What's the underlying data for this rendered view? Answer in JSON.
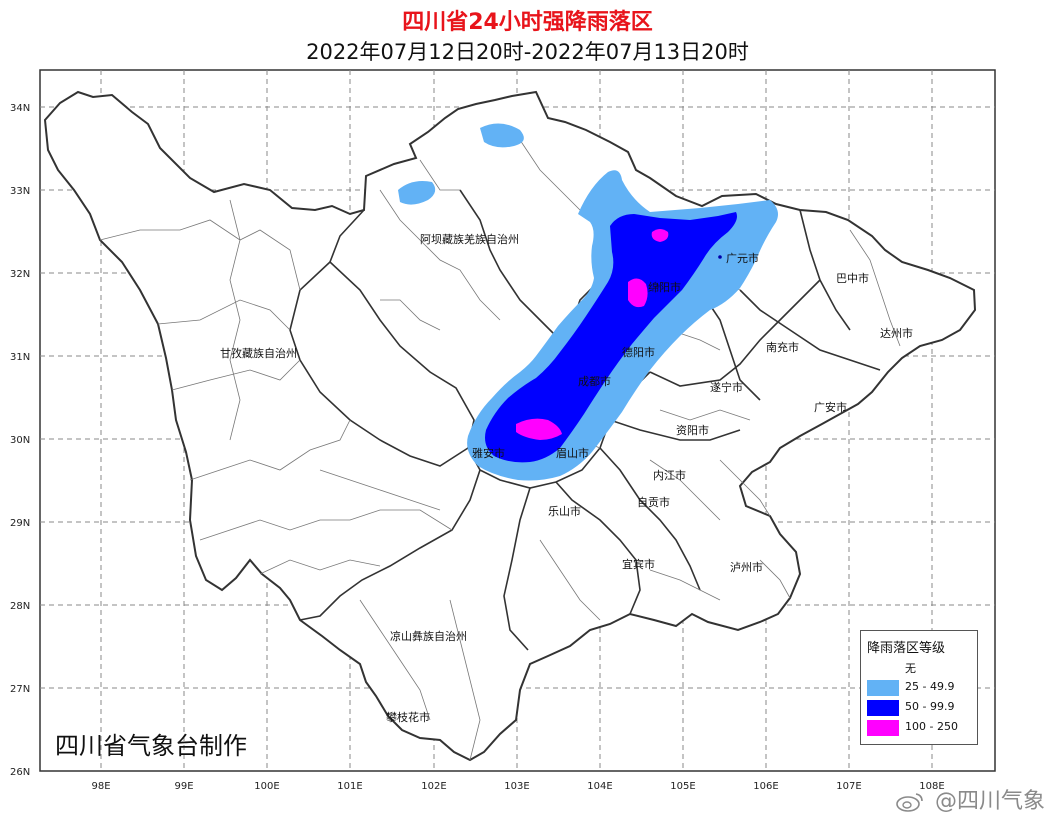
{
  "map": {
    "title": "四川省24小时强降雨落区",
    "subtitle": "2022年07月12日20时-2022年07月13日20时",
    "maker": "四川省气象台制作",
    "lat_labels": [
      "34N",
      "33N",
      "32N",
      "31N",
      "30N",
      "29N",
      "28N",
      "27N",
      "26N"
    ],
    "lon_labels": [
      "98E",
      "99E",
      "100E",
      "101E",
      "102E",
      "103E",
      "104E",
      "105E",
      "106E",
      "107E",
      "108E"
    ],
    "place_labels": [
      "阿坝藏族羌族自治州",
      "甘孜藏族自治州",
      "凉山彝族自治州",
      "攀枝花市",
      "雅安市",
      "眉山市",
      "乐山市",
      "成都市",
      "德阳市",
      "绵阳市",
      "广元市",
      "巴中市",
      "达州市",
      "南充市",
      "遂宁市",
      "广安市",
      "资阳市",
      "内江市",
      "自贡市",
      "宜宾市",
      "泸州市"
    ],
    "colors": {
      "title": "#e8141b",
      "level_25": "#62b2f5",
      "level_50": "#0000ff",
      "level_100": "#ff00ff",
      "border": "#333333",
      "grid": "#888888"
    }
  },
  "legend": {
    "title": "降雨落区等级",
    "items": [
      {
        "label": "无",
        "color": "#ffffff"
      },
      {
        "label": "25 - 49.9",
        "color": "#62b2f5"
      },
      {
        "label": "50 - 99.9",
        "color": "#0000ff"
      },
      {
        "label": "100 - 250",
        "color": "#ff00ff"
      }
    ]
  },
  "watermark": "@四川气象"
}
